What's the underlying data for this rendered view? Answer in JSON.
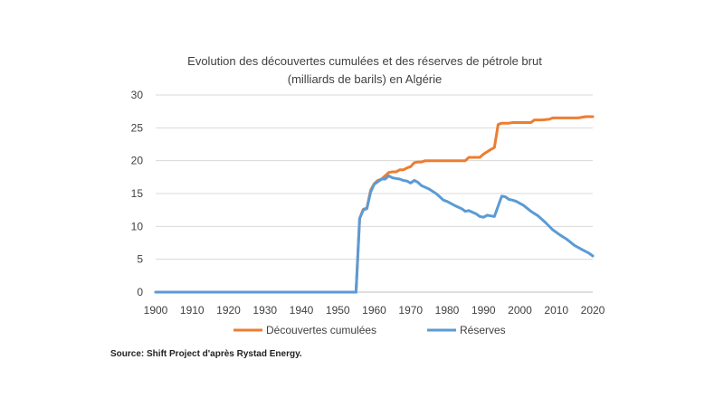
{
  "chart_data": {
    "type": "line",
    "title": "Evolution des découvertes cumulées et des réserves de pétrole brut",
    "subtitle": "(milliards de barils) en Algérie",
    "xlabel": "",
    "ylabel": "",
    "xlim": [
      1900,
      2020
    ],
    "ylim": [
      0,
      30
    ],
    "xticks": [
      1900,
      1910,
      1920,
      1930,
      1940,
      1950,
      1960,
      1970,
      1980,
      1990,
      2000,
      2010,
      2020
    ],
    "yticks": [
      0,
      5,
      10,
      15,
      20,
      25,
      30
    ],
    "grid": true,
    "legend_position": "bottom",
    "source": "Source: Shift Project d'après Rystad Energy.",
    "series": [
      {
        "name": "Découvertes cumulées",
        "color": "#ed7d31",
        "x": [
          1900,
          1955,
          1956,
          1957,
          1958,
          1959,
          1960,
          1961,
          1962,
          1963,
          1964,
          1965,
          1966,
          1967,
          1968,
          1969,
          1970,
          1971,
          1972,
          1973,
          1974,
          1975,
          1980,
          1985,
          1986,
          1988,
          1989,
          1990,
          1992,
          1993,
          1994,
          1995,
          1997,
          1998,
          2000,
          2003,
          2004,
          2006,
          2008,
          2009,
          2010,
          2015,
          2016,
          2018,
          2020
        ],
        "values": [
          0,
          0,
          11.2,
          12.6,
          12.8,
          15.5,
          16.5,
          17.0,
          17.2,
          17.7,
          18.2,
          18.3,
          18.3,
          18.6,
          18.6,
          18.9,
          19.1,
          19.7,
          19.8,
          19.8,
          20.0,
          20.0,
          20.0,
          20.0,
          20.5,
          20.5,
          20.5,
          21.0,
          21.7,
          22.0,
          25.5,
          25.7,
          25.7,
          25.8,
          25.8,
          25.8,
          26.2,
          26.2,
          26.3,
          26.5,
          26.5,
          26.5,
          26.5,
          26.7,
          26.7
        ]
      },
      {
        "name": "Réserves",
        "color": "#5b9bd5",
        "x": [
          1900,
          1955,
          1956,
          1957,
          1958,
          1959,
          1960,
          1961,
          1962,
          1963,
          1964,
          1965,
          1966,
          1967,
          1968,
          1969,
          1970,
          1971,
          1972,
          1973,
          1975,
          1977,
          1979,
          1980,
          1982,
          1984,
          1985,
          1986,
          1988,
          1989,
          1990,
          1991,
          1992,
          1993,
          1995,
          1996,
          1997,
          1998,
          1999,
          2001,
          2003,
          2005,
          2007,
          2009,
          2011,
          2013,
          2015,
          2017,
          2019,
          2020
        ],
        "values": [
          0,
          0,
          11.2,
          12.5,
          12.7,
          15.2,
          16.4,
          16.8,
          17.2,
          17.2,
          17.7,
          17.4,
          17.3,
          17.2,
          17.0,
          16.9,
          16.6,
          17.0,
          16.7,
          16.2,
          15.7,
          15.0,
          14.0,
          13.8,
          13.2,
          12.7,
          12.3,
          12.4,
          11.9,
          11.5,
          11.4,
          11.7,
          11.6,
          11.5,
          14.6,
          14.5,
          14.1,
          14.0,
          13.8,
          13.2,
          12.3,
          11.6,
          10.6,
          9.5,
          8.7,
          8.0,
          7.1,
          6.5,
          5.9,
          5.5
        ]
      }
    ]
  }
}
